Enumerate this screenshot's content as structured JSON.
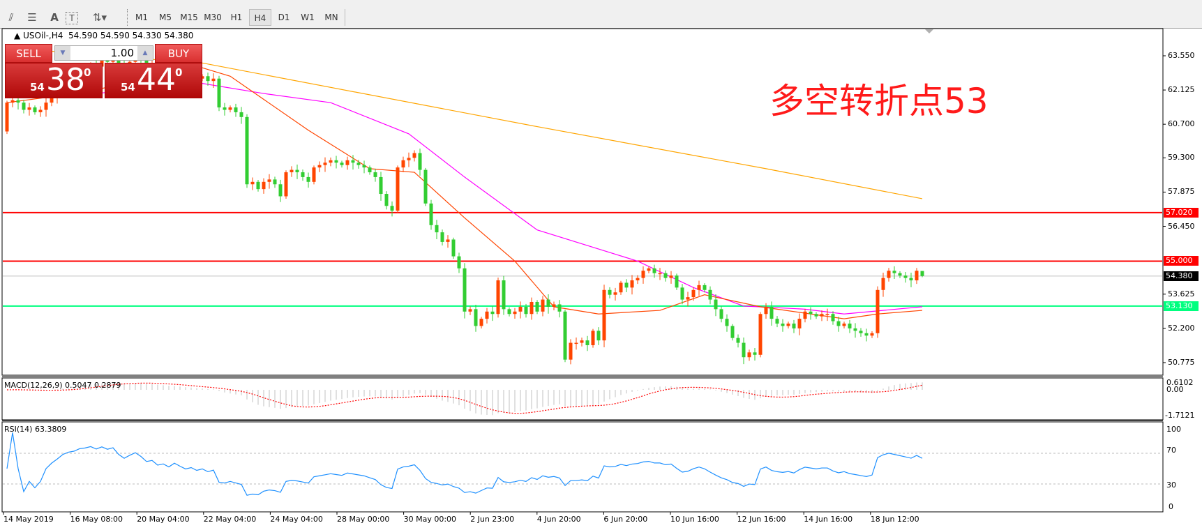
{
  "toolbar": {
    "icons": [
      "elliott-wave-icon",
      "fibonacci-fan-icon",
      "text-icon",
      "text-label-icon",
      "arrows-icon"
    ],
    "timeframes": [
      "M1",
      "M5",
      "M15",
      "M30",
      "H1",
      "H4",
      "D1",
      "W1",
      "MN"
    ],
    "selected_timeframe": "H4"
  },
  "chart_header": {
    "symbol": "USOil-,H4",
    "ohlc": "54.590 54.590 54.330 54.380"
  },
  "trade_panel": {
    "sell_label": "SELL",
    "buy_label": "BUY",
    "lot": "1.00",
    "sell_price": {
      "prefix": "54",
      "big": "38",
      "sup": "0"
    },
    "buy_price": {
      "prefix": "54",
      "big": "44",
      "sup": "0"
    }
  },
  "annotation": "多空转折点53",
  "colors": {
    "bull": "#ff4500",
    "bear": "#32cd32",
    "fast_ma": "#ff4500",
    "mid_ma": "#ff00ff",
    "slow_ma": "#ffa500",
    "resistance": "#ff0000",
    "support": "#00ff7f",
    "bid_line": "#c0c0c0",
    "macd_hist": "#c0c0c0",
    "macd_signal": "#ff0000",
    "rsi": "#1e90ff"
  },
  "chart_data": {
    "type": "candlestick",
    "price_axis": {
      "ticks": [
        "63.550",
        "62.125",
        "60.700",
        "59.300",
        "57.875",
        "56.450",
        "53.625",
        "52.200",
        "50.775"
      ],
      "range": [
        50.4,
        64.9
      ]
    },
    "first_open": 60.4,
    "last_bar": {
      "open": 54.59,
      "high": 54.59,
      "low": 54.33,
      "close": 54.38
    },
    "closes": [
      61.6,
      61.7,
      61.6,
      61.3,
      61.4,
      61.2,
      61.3,
      61.6,
      61.8,
      62.0,
      62.3,
      62.5,
      62.6,
      62.9,
      63.0,
      63.2,
      63.1,
      63.4,
      63.3,
      63.5,
      63.2,
      63.0,
      63.3,
      63.6,
      63.4,
      63.1,
      63.2,
      62.9,
      63.0,
      62.8,
      63.1,
      62.9,
      62.7,
      62.8,
      62.6,
      62.7,
      62.5,
      62.6,
      61.4,
      61.3,
      61.4,
      61.2,
      61.0,
      58.2,
      58.3,
      58.0,
      58.3,
      58.4,
      58.2,
      57.7,
      58.7,
      58.8,
      58.7,
      58.5,
      58.3,
      58.9,
      59.0,
      59.1,
      59.2,
      59.1,
      59.0,
      59.2,
      59.1,
      59.0,
      58.9,
      58.7,
      58.5,
      57.8,
      57.3,
      57.1,
      58.9,
      59.2,
      59.3,
      59.5,
      58.8,
      57.4,
      56.5,
      56.2,
      55.8,
      55.9,
      55.2,
      54.7,
      52.9,
      53.0,
      52.3,
      52.6,
      52.9,
      52.8,
      54.2,
      53.0,
      52.8,
      52.9,
      53.1,
      52.8,
      53.3,
      52.9,
      53.4,
      53.1,
      53.2,
      52.9,
      50.9,
      51.6,
      51.6,
      51.7,
      51.5,
      52.1,
      51.7,
      53.8,
      53.6,
      53.7,
      54.1,
      53.9,
      54.2,
      54.3,
      54.6,
      54.7,
      54.5,
      54.5,
      54.3,
      54.4,
      53.9,
      53.4,
      53.5,
      53.8,
      54.0,
      53.8,
      53.4,
      53.0,
      52.6,
      52.3,
      51.8,
      51.6,
      51.0,
      51.2,
      51.1,
      52.8,
      53.1,
      52.6,
      52.4,
      52.3,
      52.4,
      52.2,
      52.6,
      52.9,
      52.8,
      52.7,
      52.8,
      52.8,
      52.5,
      52.3,
      52.4,
      52.2,
      52.1,
      52.0,
      51.9,
      52.0,
      53.8,
      54.3,
      54.6,
      54.5,
      54.4,
      54.3,
      54.2,
      54.6,
      54.38
    ],
    "moving_averages": [
      {
        "key": "slow",
        "points": [
          [
            0,
            63.9
          ],
          [
            20,
            63.5
          ],
          [
            35,
            63.25
          ],
          [
            95,
            60.6
          ],
          [
            136,
            58.85
          ],
          [
            164,
            57.6
          ]
        ]
      },
      {
        "key": "mid",
        "points": [
          [
            0,
            61.85
          ],
          [
            10,
            61.85
          ],
          [
            35,
            62.4
          ],
          [
            46,
            61.98
          ],
          [
            58,
            61.6
          ],
          [
            72,
            60.3
          ],
          [
            82,
            58.5
          ],
          [
            95,
            56.3
          ],
          [
            113,
            55.0
          ],
          [
            123,
            53.9
          ],
          [
            132,
            53.13
          ],
          [
            143,
            53.0
          ],
          [
            150,
            52.8
          ],
          [
            164,
            53.1
          ]
        ]
      },
      {
        "key": "fast",
        "points": [
          [
            0,
            61.6
          ],
          [
            13,
            62.0
          ],
          [
            35,
            63.05
          ],
          [
            40,
            62.7
          ],
          [
            54,
            60.45
          ],
          [
            65,
            58.85
          ],
          [
            73,
            58.7
          ],
          [
            82,
            56.8
          ],
          [
            91,
            55.0
          ],
          [
            98,
            53.1
          ],
          [
            106,
            52.8
          ],
          [
            117,
            52.95
          ],
          [
            125,
            53.6
          ],
          [
            135,
            53.1
          ],
          [
            150,
            52.6
          ],
          [
            156,
            52.8
          ],
          [
            164,
            52.95
          ]
        ]
      }
    ],
    "horizontal_lines": [
      {
        "value": 57.02,
        "label": "57.020",
        "kind": "resistance"
      },
      {
        "value": 55.0,
        "label": "55.000",
        "kind": "resistance"
      },
      {
        "value": 54.38,
        "label": "54.380",
        "kind": "bid_line"
      },
      {
        "value": 53.13,
        "label": "53.130",
        "kind": "support"
      }
    ],
    "macd": {
      "label": "MACD(12,26,9) 0.5047 0.2879",
      "max_label": "0.6102",
      "zero_label": "0.00",
      "min_label": "-1.7121",
      "range": [
        -1.7121,
        0.6102
      ]
    },
    "rsi": {
      "label": "RSI(14) 63.3809",
      "levels": [
        "100",
        "70",
        "30",
        "0"
      ],
      "dashed_levels": [
        70,
        30
      ]
    },
    "time_labels": [
      "14 May 2019",
      "16 May 08:00",
      "20 May 04:00",
      "22 May 04:00",
      "24 May 04:00",
      "28 May 00:00",
      "30 May 00:00",
      "2 Jun 23:00",
      "4 Jun 20:00",
      "6 Jun 20:00",
      "10 Jun 16:00",
      "12 Jun 16:00",
      "14 Jun 16:00",
      "18 Jun 12:00"
    ]
  }
}
